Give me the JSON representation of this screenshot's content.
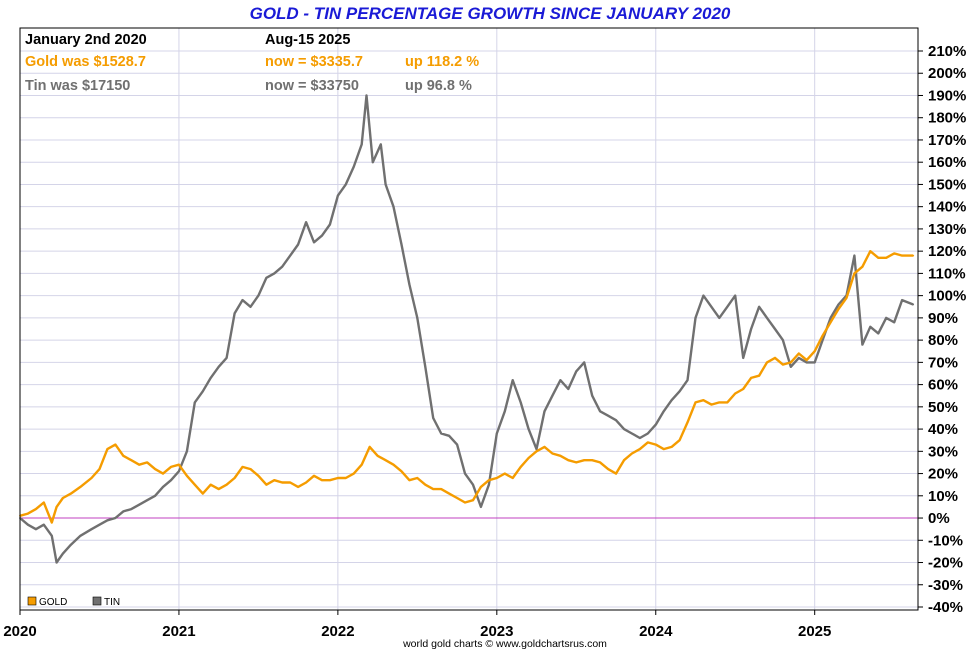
{
  "chart_data": {
    "type": "line",
    "title": "GOLD - TIN PERCENTAGE GROWTH SINCE JANUARY 2020",
    "xlabel": "",
    "ylabel": "",
    "xlim": [
      2020.0,
      2025.65
    ],
    "ylim": [
      -40,
      210
    ],
    "y_ticks": [
      210,
      200,
      190,
      180,
      170,
      160,
      150,
      140,
      130,
      120,
      110,
      100,
      90,
      80,
      70,
      60,
      50,
      40,
      30,
      20,
      10,
      0,
      -10,
      -20,
      -30,
      -40
    ],
    "y_tick_suffix": "%",
    "x_tick_labels": [
      "2020",
      "2021",
      "2022",
      "2023",
      "2024",
      "2025"
    ],
    "x_tick_values": [
      2020,
      2021,
      2022,
      2023,
      2024,
      2025
    ],
    "grid": true,
    "zero_line_color": "#c040c0",
    "series": [
      {
        "name": "GOLD",
        "color": "#f59c00",
        "points": [
          [
            2020.0,
            1
          ],
          [
            2020.05,
            2
          ],
          [
            2020.1,
            4
          ],
          [
            2020.15,
            7
          ],
          [
            2020.2,
            -2
          ],
          [
            2020.23,
            5
          ],
          [
            2020.27,
            9
          ],
          [
            2020.32,
            11
          ],
          [
            2020.38,
            14
          ],
          [
            2020.45,
            18
          ],
          [
            2020.5,
            22
          ],
          [
            2020.55,
            31
          ],
          [
            2020.6,
            33
          ],
          [
            2020.65,
            28
          ],
          [
            2020.7,
            26
          ],
          [
            2020.75,
            24
          ],
          [
            2020.8,
            25
          ],
          [
            2020.85,
            22
          ],
          [
            2020.9,
            20
          ],
          [
            2020.95,
            23
          ],
          [
            2021.0,
            24
          ],
          [
            2021.05,
            19
          ],
          [
            2021.1,
            15
          ],
          [
            2021.15,
            11
          ],
          [
            2021.2,
            15
          ],
          [
            2021.25,
            13
          ],
          [
            2021.3,
            15
          ],
          [
            2021.35,
            18
          ],
          [
            2021.4,
            23
          ],
          [
            2021.45,
            22
          ],
          [
            2021.5,
            19
          ],
          [
            2021.55,
            15
          ],
          [
            2021.6,
            17
          ],
          [
            2021.65,
            16
          ],
          [
            2021.7,
            16
          ],
          [
            2021.75,
            14
          ],
          [
            2021.8,
            16
          ],
          [
            2021.85,
            19
          ],
          [
            2021.9,
            17
          ],
          [
            2021.95,
            17
          ],
          [
            2022.0,
            18
          ],
          [
            2022.05,
            18
          ],
          [
            2022.1,
            20
          ],
          [
            2022.15,
            24
          ],
          [
            2022.2,
            32
          ],
          [
            2022.25,
            28
          ],
          [
            2022.3,
            26
          ],
          [
            2022.35,
            24
          ],
          [
            2022.4,
            21
          ],
          [
            2022.45,
            17
          ],
          [
            2022.5,
            18
          ],
          [
            2022.55,
            15
          ],
          [
            2022.6,
            13
          ],
          [
            2022.65,
            13
          ],
          [
            2022.7,
            11
          ],
          [
            2022.75,
            9
          ],
          [
            2022.8,
            7
          ],
          [
            2022.85,
            8
          ],
          [
            2022.9,
            14
          ],
          [
            2022.95,
            17
          ],
          [
            2023.0,
            18
          ],
          [
            2023.05,
            20
          ],
          [
            2023.1,
            18
          ],
          [
            2023.15,
            23
          ],
          [
            2023.2,
            27
          ],
          [
            2023.25,
            30
          ],
          [
            2023.3,
            32
          ],
          [
            2023.35,
            29
          ],
          [
            2023.4,
            28
          ],
          [
            2023.45,
            26
          ],
          [
            2023.5,
            25
          ],
          [
            2023.55,
            26
          ],
          [
            2023.6,
            26
          ],
          [
            2023.65,
            25
          ],
          [
            2023.7,
            22
          ],
          [
            2023.75,
            20
          ],
          [
            2023.8,
            26
          ],
          [
            2023.85,
            29
          ],
          [
            2023.9,
            31
          ],
          [
            2023.95,
            34
          ],
          [
            2024.0,
            33
          ],
          [
            2024.05,
            31
          ],
          [
            2024.1,
            32
          ],
          [
            2024.15,
            35
          ],
          [
            2024.2,
            43
          ],
          [
            2024.25,
            52
          ],
          [
            2024.3,
            53
          ],
          [
            2024.35,
            51
          ],
          [
            2024.4,
            52
          ],
          [
            2024.45,
            52
          ],
          [
            2024.5,
            56
          ],
          [
            2024.55,
            58
          ],
          [
            2024.6,
            63
          ],
          [
            2024.65,
            64
          ],
          [
            2024.7,
            70
          ],
          [
            2024.75,
            72
          ],
          [
            2024.8,
            69
          ],
          [
            2024.85,
            70
          ],
          [
            2024.9,
            74
          ],
          [
            2024.95,
            71
          ],
          [
            2025.0,
            75
          ],
          [
            2025.05,
            82
          ],
          [
            2025.1,
            88
          ],
          [
            2025.15,
            94
          ],
          [
            2025.2,
            99
          ],
          [
            2025.25,
            110
          ],
          [
            2025.3,
            113
          ],
          [
            2025.35,
            120
          ],
          [
            2025.4,
            117
          ],
          [
            2025.45,
            117
          ],
          [
            2025.5,
            119
          ],
          [
            2025.55,
            118
          ],
          [
            2025.62,
            118
          ]
        ]
      },
      {
        "name": "TIN",
        "color": "#707070",
        "points": [
          [
            2020.0,
            0
          ],
          [
            2020.05,
            -3
          ],
          [
            2020.1,
            -5
          ],
          [
            2020.15,
            -3
          ],
          [
            2020.2,
            -8
          ],
          [
            2020.23,
            -20
          ],
          [
            2020.27,
            -16
          ],
          [
            2020.32,
            -12
          ],
          [
            2020.38,
            -8
          ],
          [
            2020.45,
            -5
          ],
          [
            2020.5,
            -3
          ],
          [
            2020.55,
            -1
          ],
          [
            2020.6,
            0
          ],
          [
            2020.65,
            3
          ],
          [
            2020.7,
            4
          ],
          [
            2020.75,
            6
          ],
          [
            2020.8,
            8
          ],
          [
            2020.85,
            10
          ],
          [
            2020.9,
            14
          ],
          [
            2020.95,
            17
          ],
          [
            2021.0,
            21
          ],
          [
            2021.05,
            30
          ],
          [
            2021.1,
            52
          ],
          [
            2021.15,
            57
          ],
          [
            2021.2,
            63
          ],
          [
            2021.25,
            68
          ],
          [
            2021.3,
            72
          ],
          [
            2021.35,
            92
          ],
          [
            2021.4,
            98
          ],
          [
            2021.45,
            95
          ],
          [
            2021.5,
            100
          ],
          [
            2021.55,
            108
          ],
          [
            2021.6,
            110
          ],
          [
            2021.65,
            113
          ],
          [
            2021.7,
            118
          ],
          [
            2021.75,
            123
          ],
          [
            2021.8,
            133
          ],
          [
            2021.85,
            124
          ],
          [
            2021.9,
            127
          ],
          [
            2021.95,
            132
          ],
          [
            2022.0,
            145
          ],
          [
            2022.05,
            150
          ],
          [
            2022.1,
            158
          ],
          [
            2022.15,
            168
          ],
          [
            2022.18,
            190
          ],
          [
            2022.22,
            160
          ],
          [
            2022.27,
            168
          ],
          [
            2022.3,
            150
          ],
          [
            2022.35,
            140
          ],
          [
            2022.4,
            123
          ],
          [
            2022.45,
            105
          ],
          [
            2022.5,
            90
          ],
          [
            2022.55,
            68
          ],
          [
            2022.6,
            45
          ],
          [
            2022.65,
            38
          ],
          [
            2022.7,
            37
          ],
          [
            2022.75,
            33
          ],
          [
            2022.8,
            20
          ],
          [
            2022.85,
            15
          ],
          [
            2022.9,
            5
          ],
          [
            2022.95,
            15
          ],
          [
            2023.0,
            38
          ],
          [
            2023.05,
            48
          ],
          [
            2023.1,
            62
          ],
          [
            2023.15,
            52
          ],
          [
            2023.2,
            40
          ],
          [
            2023.25,
            31
          ],
          [
            2023.3,
            48
          ],
          [
            2023.35,
            55
          ],
          [
            2023.4,
            62
          ],
          [
            2023.45,
            58
          ],
          [
            2023.5,
            66
          ],
          [
            2023.55,
            70
          ],
          [
            2023.6,
            55
          ],
          [
            2023.65,
            48
          ],
          [
            2023.7,
            46
          ],
          [
            2023.75,
            44
          ],
          [
            2023.8,
            40
          ],
          [
            2023.85,
            38
          ],
          [
            2023.9,
            36
          ],
          [
            2023.95,
            38
          ],
          [
            2024.0,
            42
          ],
          [
            2024.05,
            48
          ],
          [
            2024.1,
            53
          ],
          [
            2024.15,
            57
          ],
          [
            2024.2,
            62
          ],
          [
            2024.25,
            90
          ],
          [
            2024.3,
            100
          ],
          [
            2024.35,
            95
          ],
          [
            2024.4,
            90
          ],
          [
            2024.45,
            95
          ],
          [
            2024.5,
            100
          ],
          [
            2024.55,
            72
          ],
          [
            2024.6,
            85
          ],
          [
            2024.65,
            95
          ],
          [
            2024.7,
            90
          ],
          [
            2024.75,
            85
          ],
          [
            2024.8,
            80
          ],
          [
            2024.85,
            68
          ],
          [
            2024.9,
            72
          ],
          [
            2024.95,
            70
          ],
          [
            2025.0,
            70
          ],
          [
            2025.05,
            80
          ],
          [
            2025.1,
            90
          ],
          [
            2025.15,
            96
          ],
          [
            2025.2,
            100
          ],
          [
            2025.25,
            118
          ],
          [
            2025.3,
            78
          ],
          [
            2025.35,
            86
          ],
          [
            2025.4,
            83
          ],
          [
            2025.45,
            90
          ],
          [
            2025.5,
            88
          ],
          [
            2025.55,
            98
          ],
          [
            2025.62,
            96
          ]
        ]
      }
    ],
    "legend": [
      {
        "label": "GOLD",
        "color": "#f59c00"
      },
      {
        "label": "TIN",
        "color": "#707070"
      }
    ],
    "legend_position": "bottom-left"
  },
  "info": {
    "start_label": "January 2nd 2020",
    "end_label": "Aug-15  2025",
    "gold_was": "Gold was $1528.7",
    "gold_now": "now = $3335.7",
    "gold_up": "up 118.2 %",
    "tin_was": "Tin was $17150",
    "tin_now": "now = $33750",
    "tin_up": "up 96.8 %",
    "gold_color": "#f59c00",
    "tin_color": "#707070"
  },
  "credit": "world gold charts © www.goldchartsrus.com"
}
